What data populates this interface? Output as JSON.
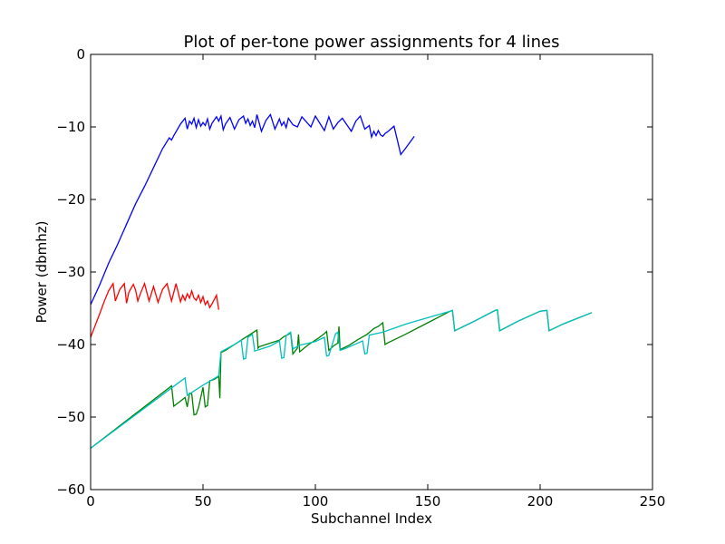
{
  "chart_data": {
    "type": "line",
    "title": "Plot of per-tone power assignments for 4 lines",
    "xlabel": "Subchannel Index",
    "ylabel": "Power (dbmhz)",
    "xlim": [
      0,
      250
    ],
    "ylim": [
      -60,
      0
    ],
    "xticks": [
      0,
      50,
      100,
      150,
      200,
      250
    ],
    "yticks": [
      0,
      -10,
      -20,
      -30,
      -40,
      -50,
      -60
    ],
    "xtick_labels": [
      "0",
      "50",
      "100",
      "150",
      "200",
      "250"
    ],
    "ytick_labels": [
      "0",
      "−10",
      "−20",
      "−30",
      "−40",
      "−50",
      "−60"
    ],
    "grid": false,
    "legend": "none",
    "series": [
      {
        "color": "#0000ff",
        "x": [
          0,
          4,
          8,
          12,
          16,
          20,
          24,
          28,
          32,
          35,
          36,
          37,
          40,
          42,
          43,
          44,
          45,
          46,
          47,
          48,
          49,
          50,
          51,
          52,
          53,
          54,
          56,
          57,
          58,
          59,
          60,
          62,
          64,
          66,
          68,
          69,
          70,
          71,
          72,
          73,
          74,
          76,
          78,
          80,
          82,
          84,
          85,
          86,
          87,
          88,
          90,
          92,
          94,
          98,
          100,
          104,
          106,
          108,
          110,
          112,
          116,
          118,
          120,
          122,
          124,
          125,
          126,
          127,
          128,
          129,
          130,
          131,
          132,
          135,
          138,
          140,
          144
        ],
        "y": [
          -34.5,
          -31.8,
          -28.8,
          -26.2,
          -23.4,
          -20.6,
          -18.2,
          -15.6,
          -13.0,
          -11.5,
          -11.8,
          -11.2,
          -9.6,
          -8.8,
          -10.3,
          -9.2,
          -9.6,
          -8.8,
          -10.1,
          -9.0,
          -9.9,
          -9.4,
          -9.8,
          -8.9,
          -10.3,
          -9.5,
          -8.6,
          -9.2,
          -8.5,
          -10.4,
          -9.6,
          -8.7,
          -10.3,
          -9.0,
          -8.5,
          -9.5,
          -8.9,
          -9.8,
          -9.2,
          -10.1,
          -8.3,
          -10.6,
          -9.1,
          -8.3,
          -10.3,
          -8.9,
          -9.8,
          -9.3,
          -10.1,
          -8.8,
          -9.7,
          -10.0,
          -8.6,
          -10.0,
          -8.5,
          -10.5,
          -8.6,
          -10.3,
          -9.4,
          -8.8,
          -10.6,
          -9.2,
          -8.5,
          -10.3,
          -9.8,
          -11.4,
          -10.6,
          -11.2,
          -10.5,
          -11.1,
          -11.3,
          -10.9,
          -10.7,
          -9.9,
          -13.8,
          -13.0,
          -11.3
        ]
      },
      {
        "color": "#ff0000",
        "x": [
          0,
          2,
          4,
          6,
          8,
          10,
          11,
          13,
          15,
          16,
          17,
          19,
          20,
          21,
          22,
          24,
          26,
          28,
          30,
          32,
          34,
          36,
          38,
          40,
          41,
          42,
          43,
          44,
          45,
          46,
          47,
          48,
          49,
          50,
          51,
          52,
          53,
          54,
          55,
          56,
          57
        ],
        "y": [
          -39.0,
          -37.4,
          -35.8,
          -34.1,
          -32.6,
          -31.6,
          -34.0,
          -32.4,
          -31.6,
          -34.3,
          -32.8,
          -31.7,
          -32.5,
          -34.0,
          -33.1,
          -31.6,
          -34.0,
          -32.0,
          -34.2,
          -32.4,
          -31.6,
          -34.0,
          -31.6,
          -34.1,
          -33.2,
          -33.9,
          -33.0,
          -33.6,
          -32.6,
          -33.6,
          -33.9,
          -33.2,
          -34.2,
          -33.4,
          -34.5,
          -34.0,
          -34.9,
          -34.4,
          -33.8,
          -33.2,
          -35.2
        ]
      },
      {
        "color": "#008000",
        "x": [
          0,
          36,
          37,
          40,
          42,
          43,
          44,
          45,
          46,
          47,
          48,
          50,
          51,
          52,
          53,
          55,
          57,
          57.5,
          58,
          60,
          63,
          66,
          68,
          70,
          72,
          74,
          74.5,
          75,
          80,
          84,
          86,
          88,
          89,
          90,
          92,
          92.5,
          93,
          97,
          101,
          104,
          105,
          106,
          108,
          110,
          110.5,
          111,
          115,
          119,
          123,
          126,
          128,
          130,
          131,
          132,
          140,
          150,
          160,
          161,
          162,
          170,
          180,
          181,
          182,
          190,
          200,
          203,
          204,
          210,
          223
        ],
        "y": [
          -54.3,
          -45.7,
          -48.5,
          -47.8,
          -47.3,
          -48.6,
          -46.7,
          -46.8,
          -49.7,
          -49.6,
          -48.7,
          -45.9,
          -48.6,
          -48.4,
          -45.0,
          -44.8,
          -44.4,
          -47.4,
          -41.1,
          -40.8,
          -40.2,
          -39.6,
          -39.2,
          -38.8,
          -38.4,
          -38.0,
          -40.5,
          -40.3,
          -39.8,
          -39.4,
          -38.9,
          -38.6,
          -38.4,
          -41.3,
          -40.5,
          -38.6,
          -41.0,
          -40.0,
          -39.2,
          -38.5,
          -38.2,
          -40.8,
          -40.2,
          -39.8,
          -37.5,
          -40.7,
          -40.1,
          -39.3,
          -38.6,
          -37.8,
          -37.5,
          -37.0,
          -40.0,
          -39.8,
          -38.6,
          -37.0,
          -35.4,
          -35.3,
          -38.1,
          -36.9,
          -35.3,
          -35.2,
          -38.1,
          -36.8,
          -35.4,
          -35.3,
          -38.1,
          -37.2,
          -35.6
        ]
      },
      {
        "color": "#00bfbf",
        "x": [
          0,
          42,
          43,
          50,
          56,
          57,
          58,
          64,
          67,
          68,
          69,
          70,
          72,
          73,
          80,
          84,
          85,
          86,
          87,
          88,
          89,
          90,
          93,
          100,
          104,
          105,
          106,
          109,
          110,
          111,
          113,
          121,
          122,
          123,
          124,
          130,
          140,
          150,
          160,
          161,
          162,
          170,
          180,
          181,
          182,
          190,
          200,
          203,
          204,
          210,
          223
        ],
        "y": [
          -54.3,
          -44.6,
          -47.0,
          -45.6,
          -44.5,
          -44.3,
          -41.0,
          -40.0,
          -39.4,
          -42.0,
          -41.9,
          -39.0,
          -38.6,
          -40.9,
          -40.2,
          -39.5,
          -41.9,
          -41.8,
          -38.8,
          -38.5,
          -38.3,
          -40.6,
          -40.1,
          -39.6,
          -39.0,
          -41.6,
          -41.5,
          -38.5,
          -38.3,
          -40.8,
          -40.6,
          -39.5,
          -41.3,
          -41.2,
          -38.7,
          -38.3,
          -37.2,
          -36.3,
          -35.4,
          -35.3,
          -38.1,
          -36.9,
          -35.3,
          -35.2,
          -38.1,
          -36.8,
          -35.4,
          -35.3,
          -38.1,
          -37.2,
          -35.6
        ]
      }
    ]
  }
}
